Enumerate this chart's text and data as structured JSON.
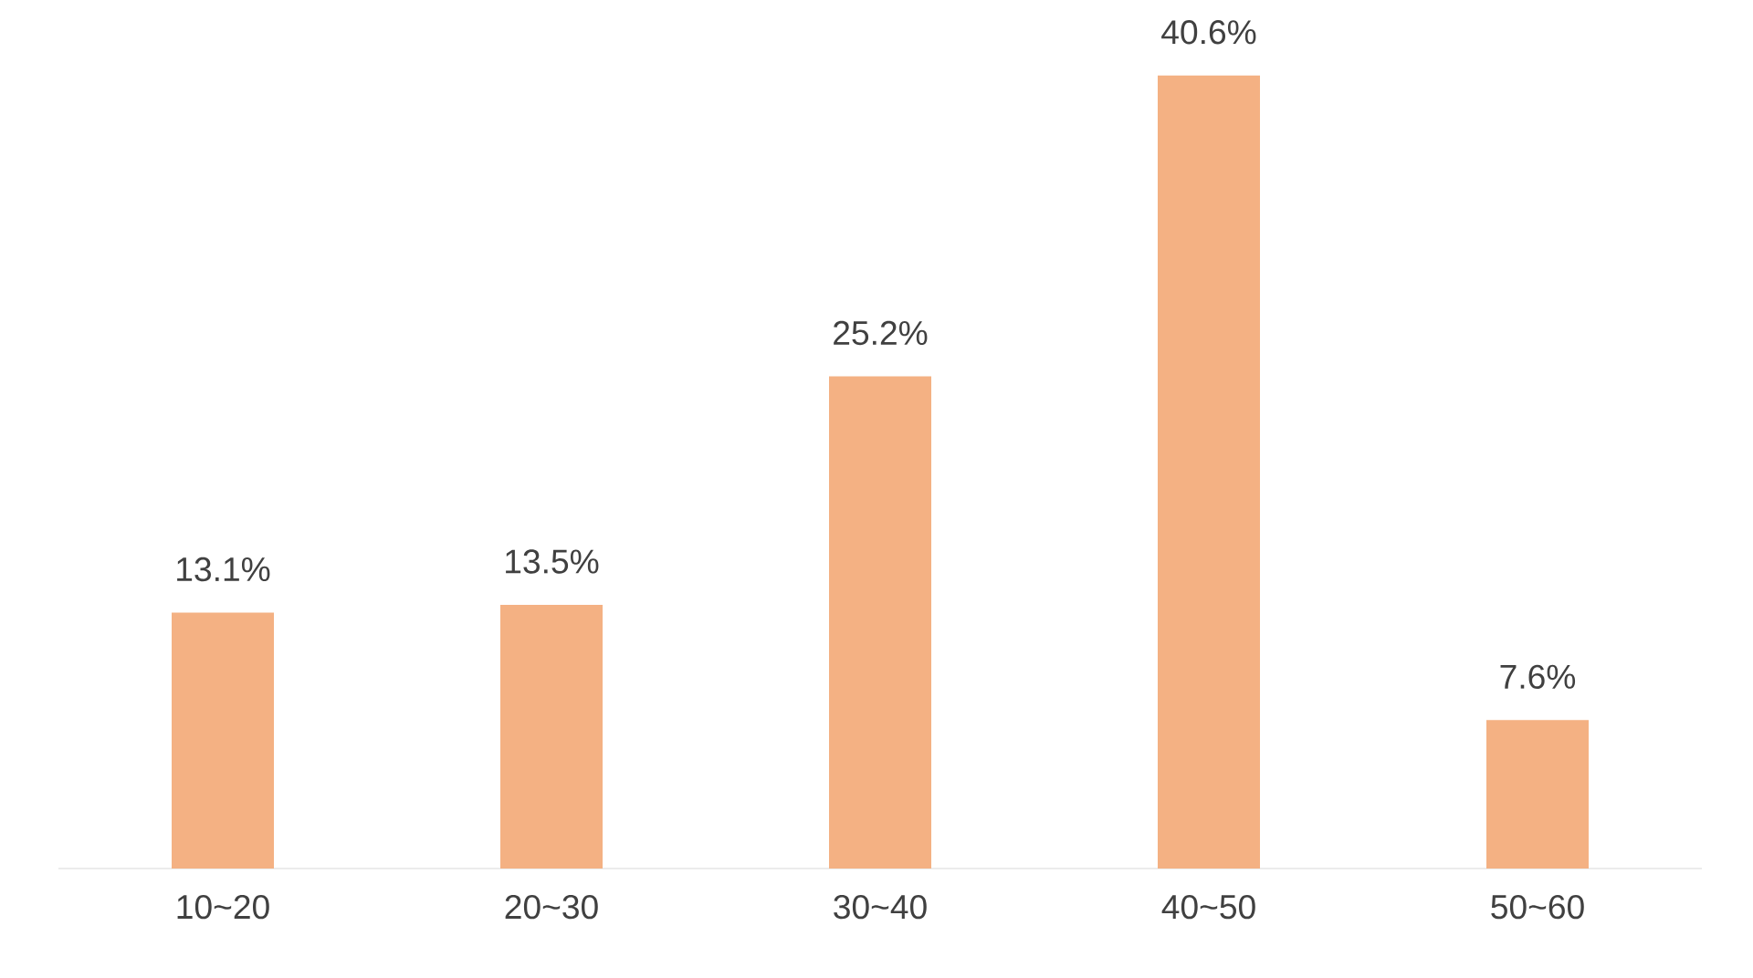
{
  "chart_data": {
    "type": "bar",
    "categories": [
      "10~20",
      "20~30",
      "30~40",
      "40~50",
      "50~60"
    ],
    "values": [
      13.1,
      13.5,
      25.2,
      40.6,
      7.6
    ],
    "value_labels": [
      "13.1%",
      "13.5%",
      "25.2%",
      "40.6%",
      "7.6%"
    ],
    "color": "#f4b183"
  }
}
